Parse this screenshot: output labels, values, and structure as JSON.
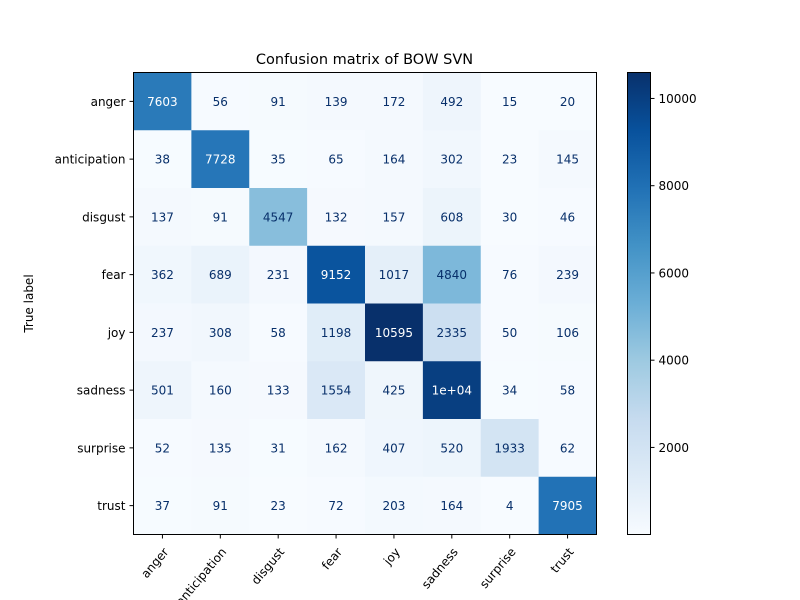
{
  "chart_data": {
    "type": "heatmap",
    "title": "Confusion matrix of BOW SVN",
    "xlabel": "",
    "ylabel": "True label",
    "x_categories": [
      "anger",
      "anticipation",
      "disgust",
      "fear",
      "joy",
      "sadness",
      "surprise",
      "trust"
    ],
    "y_categories": [
      "anger",
      "anticipation",
      "disgust",
      "fear",
      "joy",
      "sadness",
      "surprise",
      "trust"
    ],
    "values": [
      [
        7603,
        56,
        91,
        139,
        172,
        492,
        15,
        20
      ],
      [
        38,
        7728,
        35,
        65,
        164,
        302,
        23,
        145
      ],
      [
        137,
        91,
        4547,
        132,
        157,
        608,
        30,
        46
      ],
      [
        362,
        689,
        231,
        9152,
        1017,
        4840,
        76,
        239
      ],
      [
        237,
        308,
        58,
        1198,
        10595,
        2335,
        50,
        106
      ],
      [
        501,
        160,
        133,
        1554,
        425,
        10000,
        34,
        58
      ],
      [
        52,
        135,
        31,
        162,
        407,
        520,
        1933,
        62
      ],
      [
        37,
        91,
        23,
        72,
        203,
        164,
        4,
        7905
      ]
    ],
    "cell_labels": [
      [
        "7603",
        "56",
        "91",
        "139",
        "172",
        "492",
        "15",
        "20"
      ],
      [
        "38",
        "7728",
        "35",
        "65",
        "164",
        "302",
        "23",
        "145"
      ],
      [
        "137",
        "91",
        "4547",
        "132",
        "157",
        "608",
        "30",
        "46"
      ],
      [
        "362",
        "689",
        "231",
        "9152",
        "1017",
        "4840",
        "76",
        "239"
      ],
      [
        "237",
        "308",
        "58",
        "1198",
        "10595",
        "2335",
        "50",
        "106"
      ],
      [
        "501",
        "160",
        "133",
        "1554",
        "425",
        "1e+04",
        "34",
        "58"
      ],
      [
        "52",
        "135",
        "31",
        "162",
        "407",
        "520",
        "1933",
        "62"
      ],
      [
        "37",
        "91",
        "23",
        "72",
        "203",
        "164",
        "4",
        "7905"
      ]
    ],
    "colormap": "Blues",
    "color_range": [
      4,
      10595
    ],
    "colorbar_ticks": [
      2000,
      4000,
      6000,
      8000,
      10000
    ],
    "colorbar_tick_labels": [
      "2000",
      "4000",
      "6000",
      "8000",
      "10000"
    ],
    "grid": false
  }
}
